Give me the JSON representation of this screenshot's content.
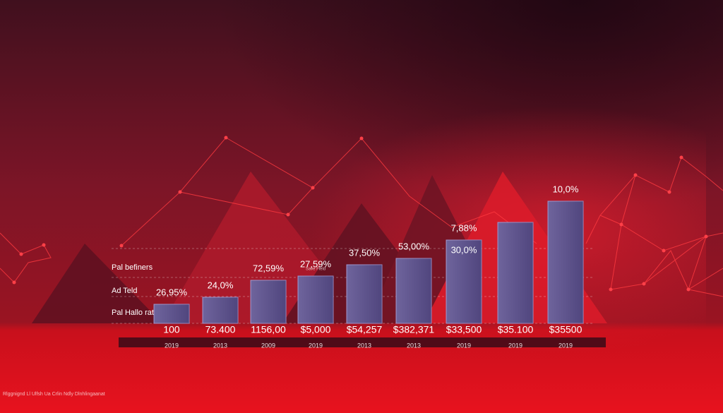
{
  "chart_data": {
    "type": "bar",
    "categories": [
      "100",
      "73.400",
      "1156,00",
      "$5,000",
      "$54,257",
      "$382,371",
      "$33,500",
      "$35.100",
      "$35500"
    ],
    "years": [
      "2019",
      "2013",
      "2009",
      "2019",
      "2013",
      "2013",
      "2019",
      "2019",
      "2019"
    ],
    "values": [
      27,
      37,
      61,
      67,
      83,
      92,
      118,
      143,
      173
    ],
    "bar_labels": [
      "26,95%",
      "24,0%",
      "72,59%",
      "27,59%",
      "37,50%",
      "53,00%",
      "7,88%",
      null,
      "10,0%"
    ],
    "inner_label": "30,0%",
    "sub_label": "Save Field",
    "row_labels": [
      "Pal befiners",
      "Ad Teld",
      "Pal Hallo rate"
    ],
    "footer": "Rlggnignd Ll Ulfsh Ua Crlin Ndly Dlnhlingaanat",
    "color": "#5b4f8f",
    "ylim": [
      0,
      200
    ]
  }
}
